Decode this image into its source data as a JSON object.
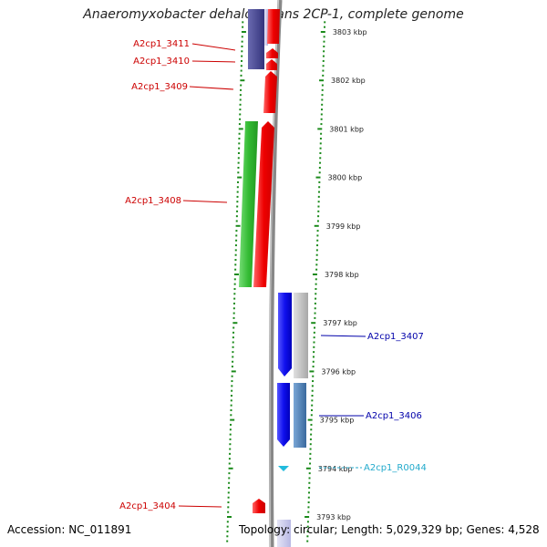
{
  "title": "Anaeromyxobacter dehalogenans 2CP-1, complete genome",
  "footer": {
    "accession": "Accession: NC_011891",
    "stats": "Topology: circular; Length: 5,029,329 bp; Genes: 4,528"
  },
  "axis": {
    "unit": "kbp",
    "ticks": [
      {
        "kbp": 3803,
        "label": "3803 kbp"
      },
      {
        "kbp": 3802,
        "label": "3802 kbp"
      },
      {
        "kbp": 3801,
        "label": "3801 kbp"
      },
      {
        "kbp": 3800,
        "label": "3800 kbp"
      },
      {
        "kbp": 3799,
        "label": "3799 kbp"
      },
      {
        "kbp": 3798,
        "label": "3798 kbp"
      },
      {
        "kbp": 3797,
        "label": "3797 kbp"
      },
      {
        "kbp": 3796,
        "label": "3796 kbp"
      },
      {
        "kbp": 3795,
        "label": "3795 kbp"
      },
      {
        "kbp": 3794,
        "label": "3794 kbp"
      },
      {
        "kbp": 3793,
        "label": "3793 kbp"
      }
    ]
  },
  "genes": [
    {
      "label": "A2cp1_3411",
      "strand": "+",
      "color": "#ee0000"
    },
    {
      "label": "A2cp1_3410",
      "strand": "+",
      "color": "#ee0000"
    },
    {
      "label": "A2cp1_3409",
      "strand": "+",
      "color": "#ee0000"
    },
    {
      "label": "A2cp1_3408",
      "strand": "+",
      "color": "#ee0000"
    },
    {
      "label": "A2cp1_3407",
      "strand": "-",
      "color": "#1010ee"
    },
    {
      "label": "A2cp1_3406",
      "strand": "-",
      "color": "#1010ee"
    },
    {
      "label": "A2cp1_R0044",
      "strand": "-",
      "color": "#22bbdd"
    },
    {
      "label": "A2cp1_3404",
      "strand": "+",
      "color": "#ee0000"
    }
  ],
  "colors": {
    "forward_cds": "#ee0000",
    "reverse_cds": "#1010ee",
    "rna": "#22bbdd",
    "cog_green": "#33bb33",
    "cog_dark_blue": "#3a3a88",
    "cog_grey": "#c0c0c0",
    "cog_steel_blue": "#4a7fb5",
    "backbone": "#888888",
    "tick": "#1a8a1a",
    "forward_label": "#cc0000",
    "reverse_label": "#0000aa",
    "rna_label": "#22aacc"
  }
}
